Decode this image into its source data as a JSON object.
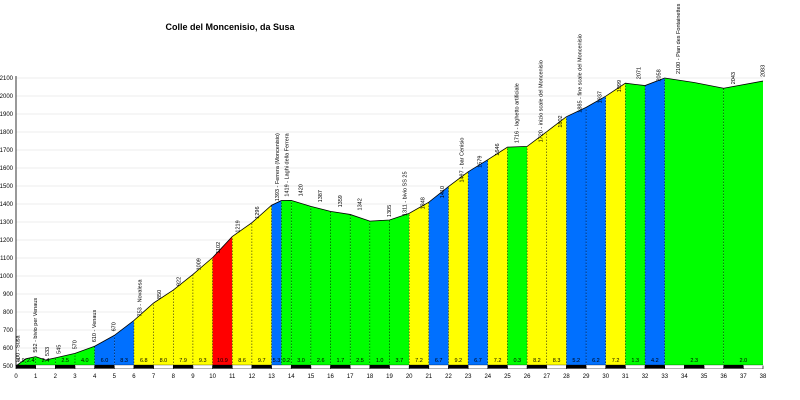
{
  "chart_data": {
    "type": "area",
    "title": "Colle del Moncenisio, da Susa",
    "xlabel": "",
    "ylabel": "",
    "xlim": [
      0,
      38
    ],
    "ylim": [
      500,
      2100
    ],
    "x_ticks": [
      0,
      1,
      2,
      3,
      4,
      5,
      6,
      7,
      8,
      9,
      10,
      11,
      12,
      13,
      14,
      15,
      16,
      17,
      18,
      19,
      20,
      21,
      22,
      23,
      24,
      25,
      26,
      27,
      28,
      29,
      30,
      31,
      32,
      33,
      34,
      35,
      36,
      37,
      38
    ],
    "y_ticks": [
      500,
      600,
      700,
      800,
      900,
      1000,
      1100,
      1200,
      1300,
      1400,
      1500,
      1600,
      1700,
      1800,
      1900,
      2000,
      2100
    ],
    "colors": {
      "red": "#ff0000",
      "blue": "#0070ff",
      "yellow": "#ffff00",
      "green": "#00ff00"
    },
    "profile": [
      {
        "x": 0,
        "y": 500
      },
      {
        "x": 0.5,
        "y": 540
      },
      {
        "x": 1,
        "y": 552
      },
      {
        "x": 1.5,
        "y": 533
      },
      {
        "x": 2,
        "y": 545
      },
      {
        "x": 3,
        "y": 570
      },
      {
        "x": 4,
        "y": 610
      },
      {
        "x": 5,
        "y": 670
      },
      {
        "x": 6,
        "y": 753
      },
      {
        "x": 7,
        "y": 850
      },
      {
        "x": 8,
        "y": 922
      },
      {
        "x": 9,
        "y": 1009
      },
      {
        "x": 10,
        "y": 1102
      },
      {
        "x": 11,
        "y": 1219
      },
      {
        "x": 12,
        "y": 1296
      },
      {
        "x": 13,
        "y": 1393
      },
      {
        "x": 13.5,
        "y": 1419
      },
      {
        "x": 14,
        "y": 1420
      },
      {
        "x": 15,
        "y": 1387
      },
      {
        "x": 16,
        "y": 1359
      },
      {
        "x": 17,
        "y": 1342
      },
      {
        "x": 18,
        "y": 1305
      },
      {
        "x": 19,
        "y": 1311
      },
      {
        "x": 20,
        "y": 1348
      },
      {
        "x": 21,
        "y": 1410
      },
      {
        "x": 22,
        "y": 1497
      },
      {
        "x": 23,
        "y": 1579
      },
      {
        "x": 24,
        "y": 1646
      },
      {
        "x": 25,
        "y": 1716
      },
      {
        "x": 26,
        "y": 1720
      },
      {
        "x": 27,
        "y": 1802
      },
      {
        "x": 28,
        "y": 1885
      },
      {
        "x": 29,
        "y": 1937
      },
      {
        "x": 30,
        "y": 1999
      },
      {
        "x": 31,
        "y": 2071
      },
      {
        "x": 32,
        "y": 2058
      },
      {
        "x": 33,
        "y": 2100
      },
      {
        "x": 34.5,
        "y": 2075
      },
      {
        "x": 36,
        "y": 2043
      },
      {
        "x": 38,
        "y": 2083
      }
    ],
    "segments": [
      {
        "x0": 0,
        "x1": 0.5,
        "color": "green",
        "grad": "7.9"
      },
      {
        "x0": 0.5,
        "x1": 1,
        "color": "green",
        "grad": "2.4"
      },
      {
        "x0": 1,
        "x1": 2,
        "color": "green",
        "grad": "2.4"
      },
      {
        "x0": 2,
        "x1": 3,
        "color": "green",
        "grad": "2.5"
      },
      {
        "x0": 3,
        "x1": 4,
        "color": "green",
        "grad": "4.0"
      },
      {
        "x0": 4,
        "x1": 5,
        "color": "blue",
        "grad": "6.0"
      },
      {
        "x0": 5,
        "x1": 6,
        "color": "blue",
        "grad": "8.3"
      },
      {
        "x0": 6,
        "x1": 7,
        "color": "yellow",
        "grad": "6.8"
      },
      {
        "x0": 7,
        "x1": 8,
        "color": "yellow",
        "grad": "8.0"
      },
      {
        "x0": 8,
        "x1": 9,
        "color": "yellow",
        "grad": "7.9"
      },
      {
        "x0": 9,
        "x1": 10,
        "color": "yellow",
        "grad": "9.3"
      },
      {
        "x0": 10,
        "x1": 11,
        "color": "red",
        "grad": "10.9"
      },
      {
        "x0": 11,
        "x1": 12,
        "color": "yellow",
        "grad": "8.6"
      },
      {
        "x0": 12,
        "x1": 13,
        "color": "yellow",
        "grad": "9.7"
      },
      {
        "x0": 13,
        "x1": 13.5,
        "color": "blue",
        "grad": "5.3"
      },
      {
        "x0": 13.5,
        "x1": 14,
        "color": "green",
        "grad": "0.2"
      },
      {
        "x0": 14,
        "x1": 15,
        "color": "green",
        "grad": "3.0"
      },
      {
        "x0": 15,
        "x1": 16,
        "color": "green",
        "grad": "2.6"
      },
      {
        "x0": 16,
        "x1": 17,
        "color": "green",
        "grad": "1.7"
      },
      {
        "x0": 17,
        "x1": 18,
        "color": "green",
        "grad": "2.5"
      },
      {
        "x0": 18,
        "x1": 19,
        "color": "green",
        "grad": "1.0"
      },
      {
        "x0": 19,
        "x1": 20,
        "color": "green",
        "grad": "3.7"
      },
      {
        "x0": 20,
        "x1": 21,
        "color": "yellow",
        "grad": "7.2"
      },
      {
        "x0": 21,
        "x1": 22,
        "color": "blue",
        "grad": "6.7"
      },
      {
        "x0": 22,
        "x1": 23,
        "color": "yellow",
        "grad": "9.2"
      },
      {
        "x0": 23,
        "x1": 24,
        "color": "blue",
        "grad": "6.7"
      },
      {
        "x0": 24,
        "x1": 25,
        "color": "yellow",
        "grad": "7.2"
      },
      {
        "x0": 25,
        "x1": 26,
        "color": "green",
        "grad": "0.3"
      },
      {
        "x0": 26,
        "x1": 27,
        "color": "yellow",
        "grad": "8.2"
      },
      {
        "x0": 27,
        "x1": 28,
        "color": "yellow",
        "grad": "8.3"
      },
      {
        "x0": 28,
        "x1": 29,
        "color": "blue",
        "grad": "5.2"
      },
      {
        "x0": 29,
        "x1": 30,
        "color": "blue",
        "grad": "6.2"
      },
      {
        "x0": 30,
        "x1": 31,
        "color": "yellow",
        "grad": "7.2"
      },
      {
        "x0": 31,
        "x1": 32,
        "color": "green",
        "grad": "1.3"
      },
      {
        "x0": 32,
        "x1": 33,
        "color": "blue",
        "grad": "4.2"
      },
      {
        "x0": 33,
        "x1": 36,
        "color": "green",
        "grad": "2.3"
      },
      {
        "x0": 36,
        "x1": 38,
        "color": "green",
        "grad": "2.0"
      }
    ],
    "annotations": [
      {
        "x": 0.1,
        "y": 500,
        "text": "500 - Susa"
      },
      {
        "x": 1,
        "y": 552,
        "text": "552 - bivio per Venaus"
      },
      {
        "x": 1.6,
        "y": 533,
        "text": "533"
      },
      {
        "x": 2.2,
        "y": 545,
        "text": "545"
      },
      {
        "x": 3,
        "y": 570,
        "text": "570"
      },
      {
        "x": 4,
        "y": 610,
        "text": "610 - Venaus"
      },
      {
        "x": 5,
        "y": 670,
        "text": "670"
      },
      {
        "x": 6.3,
        "y": 753,
        "text": "753 - Novalesa"
      },
      {
        "x": 7.3,
        "y": 850,
        "text": "850"
      },
      {
        "x": 8.3,
        "y": 922,
        "text": "922"
      },
      {
        "x": 9.3,
        "y": 1009,
        "text": "1009"
      },
      {
        "x": 10.3,
        "y": 1102,
        "text": "1102"
      },
      {
        "x": 11.3,
        "y": 1219,
        "text": "1219"
      },
      {
        "x": 12.3,
        "y": 1296,
        "text": "1296"
      },
      {
        "x": 13.3,
        "y": 1393,
        "text": "1393 - Ferrera (Moncenisio)"
      },
      {
        "x": 13.8,
        "y": 1419,
        "text": "1419 - Laghi della Ferrera"
      },
      {
        "x": 14.5,
        "y": 1420,
        "text": "1420"
      },
      {
        "x": 15.5,
        "y": 1387,
        "text": "1387"
      },
      {
        "x": 16.5,
        "y": 1359,
        "text": "1359"
      },
      {
        "x": 17.5,
        "y": 1342,
        "text": "1342"
      },
      {
        "x": 19,
        "y": 1305,
        "text": "1305"
      },
      {
        "x": 19.8,
        "y": 1311,
        "text": "1311 - bivio SS 25"
      },
      {
        "x": 20.7,
        "y": 1348,
        "text": "1348"
      },
      {
        "x": 21.7,
        "y": 1410,
        "text": "1410"
      },
      {
        "x": 22.7,
        "y": 1497,
        "text": "1497 - bar Cenisio"
      },
      {
        "x": 23.6,
        "y": 1579,
        "text": "1579"
      },
      {
        "x": 24.5,
        "y": 1646,
        "text": "1646"
      },
      {
        "x": 25.5,
        "y": 1716,
        "text": "1716 - laghetto artificiale"
      },
      {
        "x": 26.7,
        "y": 1720,
        "text": "1720 - inizio scale del Moncenisio"
      },
      {
        "x": 27.7,
        "y": 1802,
        "text": "1802"
      },
      {
        "x": 28.7,
        "y": 1885,
        "text": "1885 - fine scale del Moncenisio"
      },
      {
        "x": 29.7,
        "y": 1937,
        "text": "1937"
      },
      {
        "x": 30.7,
        "y": 1999,
        "text": "1999"
      },
      {
        "x": 31.7,
        "y": 2071,
        "text": "2071"
      },
      {
        "x": 32.7,
        "y": 2058,
        "text": "2058"
      },
      {
        "x": 33.7,
        "y": 2100,
        "text": "2100 - Pian des Fontainettes"
      },
      {
        "x": 36.5,
        "y": 2043,
        "text": "2043"
      },
      {
        "x": 38,
        "y": 2083,
        "text": "2083"
      }
    ]
  }
}
